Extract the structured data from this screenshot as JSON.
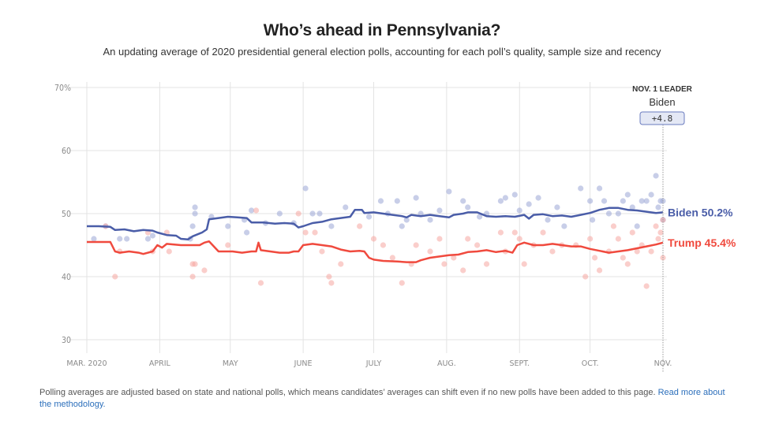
{
  "header": {
    "title": "Who’s ahead in Pennsylvania?",
    "subtitle": "An updating average of 2020 presidential general election polls, accounting for each poll’s quality, sample size and recency"
  },
  "footnote": {
    "text": "Polling averages are adjusted based on state and national polls, which means candidates’ averages can shift even if no new polls have been added to this page. ",
    "link": "Read more about the methodology."
  },
  "chart_data": {
    "type": "line",
    "title": "Who’s ahead in Pennsylvania?",
    "xlabel": "",
    "ylabel": "",
    "ylim": [
      30,
      70
    ],
    "yticks": [
      30,
      40,
      50,
      60,
      70
    ],
    "ytick_labels": [
      "30",
      "40",
      "50",
      "60",
      "70%"
    ],
    "x_domain_days": [
      0,
      245
    ],
    "xticks": [
      {
        "day": 0,
        "label": "MAR. 2020"
      },
      {
        "day": 31,
        "label": "APRIL"
      },
      {
        "day": 61,
        "label": "MAY"
      },
      {
        "day": 92,
        "label": "JUNE"
      },
      {
        "day": 122,
        "label": "JULY"
      },
      {
        "day": 153,
        "label": "AUG."
      },
      {
        "day": 184,
        "label": "SEPT."
      },
      {
        "day": 214,
        "label": "OCT."
      },
      {
        "day": 245,
        "label": "NOV."
      }
    ],
    "grid": true,
    "leader": {
      "heading": "NOV. 1 LEADER",
      "name": "Biden",
      "margin": "+4.8"
    },
    "series": [
      {
        "name": "Biden",
        "end_label": "Biden 50.2%",
        "color": "#4a5da8",
        "dot_color": "#9aa6d6",
        "points": [
          [
            0,
            48.0
          ],
          [
            5,
            48.0
          ],
          [
            10,
            47.9
          ],
          [
            12,
            47.4
          ],
          [
            16,
            47.5
          ],
          [
            20,
            47.2
          ],
          [
            24,
            47.4
          ],
          [
            28,
            47.3
          ],
          [
            30,
            47.0
          ],
          [
            34,
            46.6
          ],
          [
            38,
            46.5
          ],
          [
            40,
            46.0
          ],
          [
            43,
            45.9
          ],
          [
            45,
            46.4
          ],
          [
            49,
            47.0
          ],
          [
            51,
            47.5
          ],
          [
            52,
            49.1
          ],
          [
            56,
            49.3
          ],
          [
            60,
            49.5
          ],
          [
            64,
            49.4
          ],
          [
            68,
            49.3
          ],
          [
            70,
            48.6
          ],
          [
            75,
            48.6
          ],
          [
            80,
            48.4
          ],
          [
            84,
            48.5
          ],
          [
            88,
            48.4
          ],
          [
            90,
            47.8
          ],
          [
            92,
            48.0
          ],
          [
            96,
            48.5
          ],
          [
            100,
            48.7
          ],
          [
            104,
            49.1
          ],
          [
            108,
            49.3
          ],
          [
            112,
            49.5
          ],
          [
            114,
            50.6
          ],
          [
            117,
            50.6
          ],
          [
            118,
            50.1
          ],
          [
            122,
            50.2
          ],
          [
            126,
            50.0
          ],
          [
            130,
            49.8
          ],
          [
            134,
            49.6
          ],
          [
            136,
            49.4
          ],
          [
            138,
            49.8
          ],
          [
            142,
            49.6
          ],
          [
            146,
            49.8
          ],
          [
            150,
            49.6
          ],
          [
            154,
            49.4
          ],
          [
            156,
            49.8
          ],
          [
            160,
            50.0
          ],
          [
            162,
            50.2
          ],
          [
            166,
            50.2
          ],
          [
            170,
            49.6
          ],
          [
            174,
            49.5
          ],
          [
            178,
            49.6
          ],
          [
            182,
            49.5
          ],
          [
            186,
            49.8
          ],
          [
            188,
            49.2
          ],
          [
            190,
            49.8
          ],
          [
            194,
            49.9
          ],
          [
            198,
            49.6
          ],
          [
            202,
            49.7
          ],
          [
            206,
            49.5
          ],
          [
            210,
            49.8
          ],
          [
            214,
            50.1
          ],
          [
            218,
            50.6
          ],
          [
            222,
            50.9
          ],
          [
            226,
            50.9
          ],
          [
            230,
            50.6
          ],
          [
            234,
            50.5
          ],
          [
            238,
            50.3
          ],
          [
            242,
            50.1
          ],
          [
            245,
            50.2
          ]
        ],
        "polls": [
          [
            3,
            46
          ],
          [
            8,
            48
          ],
          [
            14,
            46
          ],
          [
            17,
            46
          ],
          [
            26,
            46
          ],
          [
            28,
            46.5
          ],
          [
            44,
            46
          ],
          [
            45,
            48
          ],
          [
            46,
            51
          ],
          [
            46,
            50
          ],
          [
            53,
            49.5
          ],
          [
            60,
            48
          ],
          [
            67,
            49
          ],
          [
            68,
            47
          ],
          [
            70,
            50.5
          ],
          [
            76,
            48.5
          ],
          [
            82,
            50
          ],
          [
            88,
            48.5
          ],
          [
            93,
            54
          ],
          [
            96,
            50
          ],
          [
            99,
            50
          ],
          [
            104,
            48
          ],
          [
            110,
            51
          ],
          [
            120,
            49.5
          ],
          [
            125,
            52
          ],
          [
            128,
            50
          ],
          [
            132,
            52
          ],
          [
            134,
            48
          ],
          [
            136,
            49
          ],
          [
            140,
            52.5
          ],
          [
            142,
            50
          ],
          [
            146,
            49
          ],
          [
            150,
            50.5
          ],
          [
            154,
            53.5
          ],
          [
            160,
            52
          ],
          [
            162,
            51
          ],
          [
            167,
            49.5
          ],
          [
            170,
            50
          ],
          [
            176,
            52
          ],
          [
            178,
            52.5
          ],
          [
            182,
            53
          ],
          [
            184,
            50.5
          ],
          [
            188,
            51.5
          ],
          [
            192,
            52.5
          ],
          [
            196,
            49
          ],
          [
            200,
            51
          ],
          [
            203,
            48
          ],
          [
            210,
            54
          ],
          [
            214,
            52
          ],
          [
            215,
            49
          ],
          [
            218,
            54
          ],
          [
            220,
            52
          ],
          [
            222,
            50
          ],
          [
            226,
            50
          ],
          [
            228,
            52
          ],
          [
            230,
            53
          ],
          [
            232,
            51
          ],
          [
            234,
            48
          ],
          [
            236,
            52
          ],
          [
            238,
            52
          ],
          [
            240,
            53
          ],
          [
            242,
            56
          ],
          [
            243,
            51
          ],
          [
            244,
            52
          ],
          [
            245,
            49
          ],
          [
            245,
            52
          ]
        ]
      },
      {
        "name": "Trump",
        "end_label": "Trump 45.4%",
        "color": "#f04a3e",
        "dot_color": "#f6a6a0",
        "points": [
          [
            0,
            45.5
          ],
          [
            10,
            45.5
          ],
          [
            12,
            44.0
          ],
          [
            14,
            43.8
          ],
          [
            18,
            44.0
          ],
          [
            22,
            43.8
          ],
          [
            24,
            43.6
          ],
          [
            28,
            44.0
          ],
          [
            30,
            45.0
          ],
          [
            32,
            44.6
          ],
          [
            34,
            45.2
          ],
          [
            40,
            45.0
          ],
          [
            48,
            45.0
          ],
          [
            50,
            45.4
          ],
          [
            52,
            45.6
          ],
          [
            54,
            44.8
          ],
          [
            56,
            44.0
          ],
          [
            62,
            44.0
          ],
          [
            66,
            43.8
          ],
          [
            70,
            44.0
          ],
          [
            72,
            44.0
          ],
          [
            73,
            45.4
          ],
          [
            74,
            44.2
          ],
          [
            78,
            44.0
          ],
          [
            82,
            43.8
          ],
          [
            86,
            43.8
          ],
          [
            88,
            44.0
          ],
          [
            90,
            44.0
          ],
          [
            92,
            45.0
          ],
          [
            96,
            45.2
          ],
          [
            100,
            45.0
          ],
          [
            104,
            44.8
          ],
          [
            108,
            44.3
          ],
          [
            112,
            44.0
          ],
          [
            116,
            44.1
          ],
          [
            118,
            44.0
          ],
          [
            120,
            43.0
          ],
          [
            122,
            42.7
          ],
          [
            126,
            42.5
          ],
          [
            132,
            42.4
          ],
          [
            136,
            42.3
          ],
          [
            140,
            42.3
          ],
          [
            142,
            42.6
          ],
          [
            144,
            42.8
          ],
          [
            146,
            43.0
          ],
          [
            150,
            43.2
          ],
          [
            154,
            43.4
          ],
          [
            158,
            43.5
          ],
          [
            162,
            43.9
          ],
          [
            166,
            44.0
          ],
          [
            170,
            44.2
          ],
          [
            174,
            43.9
          ],
          [
            178,
            44.1
          ],
          [
            181,
            43.8
          ],
          [
            183,
            45.0
          ],
          [
            186,
            45.4
          ],
          [
            190,
            45.0
          ],
          [
            194,
            45.0
          ],
          [
            198,
            45.2
          ],
          [
            202,
            45.0
          ],
          [
            206,
            44.8
          ],
          [
            210,
            44.8
          ],
          [
            214,
            44.4
          ],
          [
            218,
            44.1
          ],
          [
            222,
            43.8
          ],
          [
            226,
            44.0
          ],
          [
            230,
            44.2
          ],
          [
            234,
            44.5
          ],
          [
            238,
            44.8
          ],
          [
            242,
            45.1
          ],
          [
            245,
            45.4
          ]
        ],
        "polls": [
          [
            8,
            48
          ],
          [
            12,
            40
          ],
          [
            14,
            44
          ],
          [
            26,
            47
          ],
          [
            28,
            44
          ],
          [
            34,
            47
          ],
          [
            35,
            44
          ],
          [
            45,
            42
          ],
          [
            45,
            40
          ],
          [
            46,
            42
          ],
          [
            50,
            41
          ],
          [
            60,
            45
          ],
          [
            72,
            50.5
          ],
          [
            74,
            39
          ],
          [
            90,
            50
          ],
          [
            93,
            47
          ],
          [
            97,
            47
          ],
          [
            100,
            44
          ],
          [
            103,
            40
          ],
          [
            104,
            39
          ],
          [
            108,
            42
          ],
          [
            116,
            48
          ],
          [
            122,
            46
          ],
          [
            126,
            45
          ],
          [
            130,
            43
          ],
          [
            134,
            39
          ],
          [
            138,
            42
          ],
          [
            140,
            45
          ],
          [
            146,
            44
          ],
          [
            150,
            46
          ],
          [
            152,
            42
          ],
          [
            156,
            43
          ],
          [
            160,
            41
          ],
          [
            162,
            46
          ],
          [
            166,
            45
          ],
          [
            170,
            42
          ],
          [
            176,
            47
          ],
          [
            178,
            44
          ],
          [
            182,
            47
          ],
          [
            184,
            46
          ],
          [
            186,
            42
          ],
          [
            190,
            45
          ],
          [
            194,
            47
          ],
          [
            198,
            44
          ],
          [
            202,
            45
          ],
          [
            208,
            45
          ],
          [
            212,
            40
          ],
          [
            214,
            46
          ],
          [
            216,
            43
          ],
          [
            218,
            41
          ],
          [
            222,
            44
          ],
          [
            224,
            48
          ],
          [
            226,
            46
          ],
          [
            228,
            43
          ],
          [
            230,
            42
          ],
          [
            232,
            47
          ],
          [
            234,
            44
          ],
          [
            236,
            45
          ],
          [
            238,
            38.5
          ],
          [
            240,
            44
          ],
          [
            242,
            48
          ],
          [
            243,
            46
          ],
          [
            244,
            47
          ],
          [
            245,
            43
          ],
          [
            245,
            49
          ]
        ]
      }
    ]
  }
}
